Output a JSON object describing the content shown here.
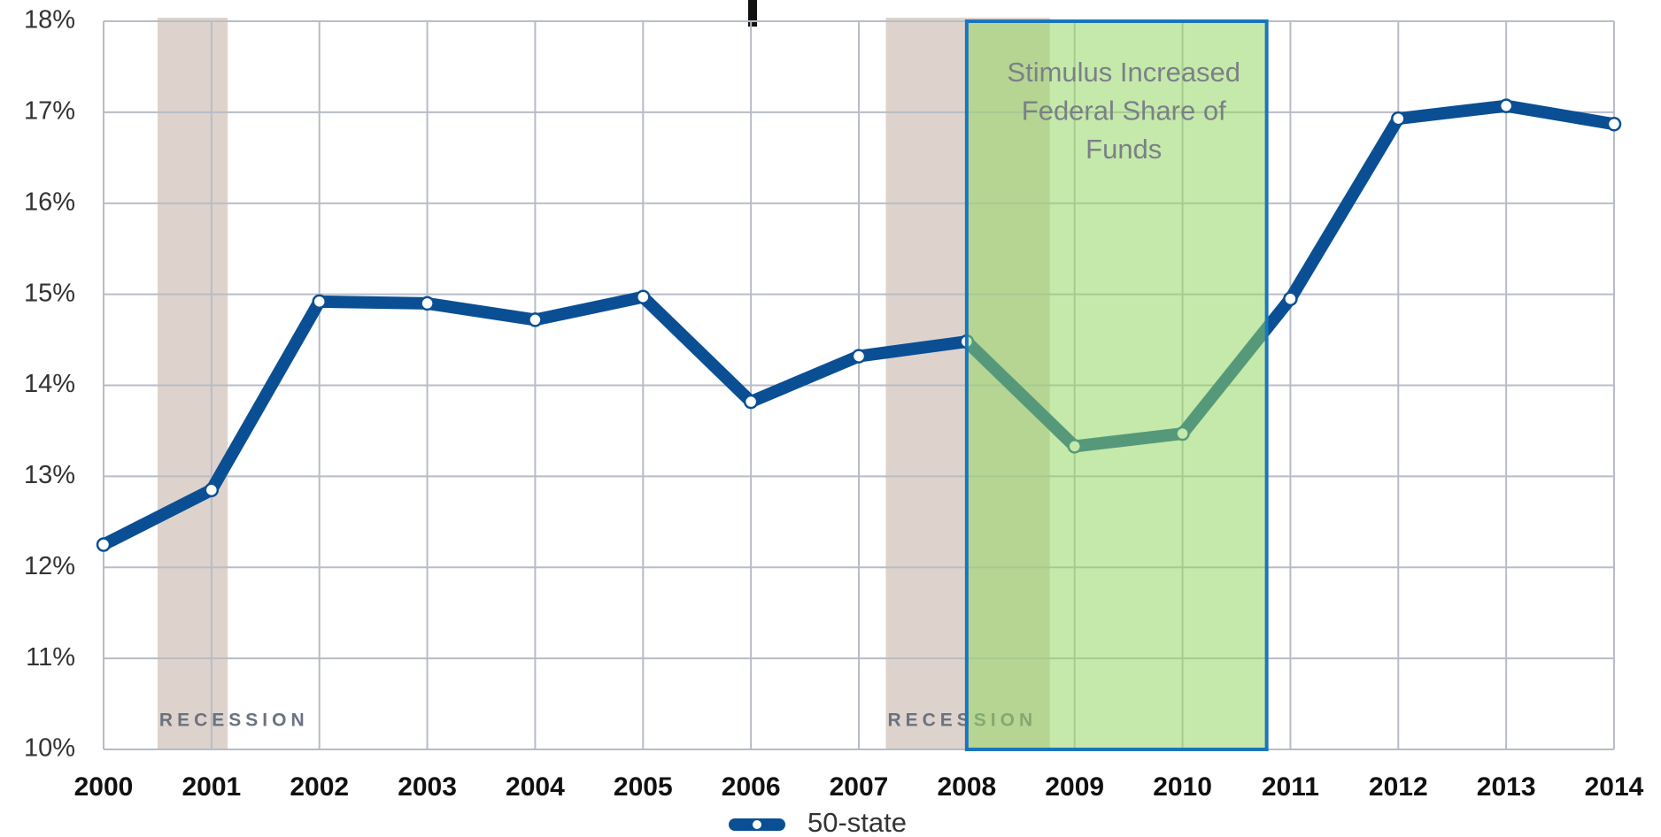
{
  "chart_data": {
    "type": "line",
    "x": [
      2000,
      2001,
      2002,
      2003,
      2004,
      2005,
      2006,
      2007,
      2008,
      2009,
      2010,
      2011,
      2012,
      2013,
      2014
    ],
    "series": [
      {
        "name": "50-state",
        "color": "#0a4f94",
        "values": [
          12.25,
          12.85,
          14.92,
          14.9,
          14.72,
          14.97,
          13.82,
          14.32,
          14.48,
          13.33,
          13.47,
          14.95,
          16.93,
          17.07,
          16.87
        ]
      }
    ],
    "xlim": [
      2000,
      2014
    ],
    "xticks": [
      2000,
      2001,
      2002,
      2003,
      2004,
      2005,
      2006,
      2007,
      2008,
      2009,
      2010,
      2011,
      2012,
      2013,
      2014
    ],
    "ylim": [
      10,
      18
    ],
    "yticks": [
      {
        "value": 10,
        "label": "10%"
      },
      {
        "value": 11,
        "label": "11%"
      },
      {
        "value": 12,
        "label": "12%"
      },
      {
        "value": 13,
        "label": "13%"
      },
      {
        "value": 14,
        "label": "14%"
      },
      {
        "value": 15,
        "label": "15%"
      },
      {
        "value": 16,
        "label": "16%"
      },
      {
        "value": 17,
        "label": "17%"
      },
      {
        "value": 18,
        "label": "18%"
      }
    ],
    "grid": true,
    "recessions": [
      {
        "start": 2000.5,
        "end": 2001.15,
        "label": "RECESSION"
      },
      {
        "start": 2007.25,
        "end": 2008.77,
        "label": "RECESSION"
      }
    ],
    "highlight": {
      "start": 2008,
      "end": 2010.78,
      "lines": [
        "Stimulus Increased",
        "Federal Share of",
        "Funds"
      ]
    },
    "legend": "bottom"
  }
}
